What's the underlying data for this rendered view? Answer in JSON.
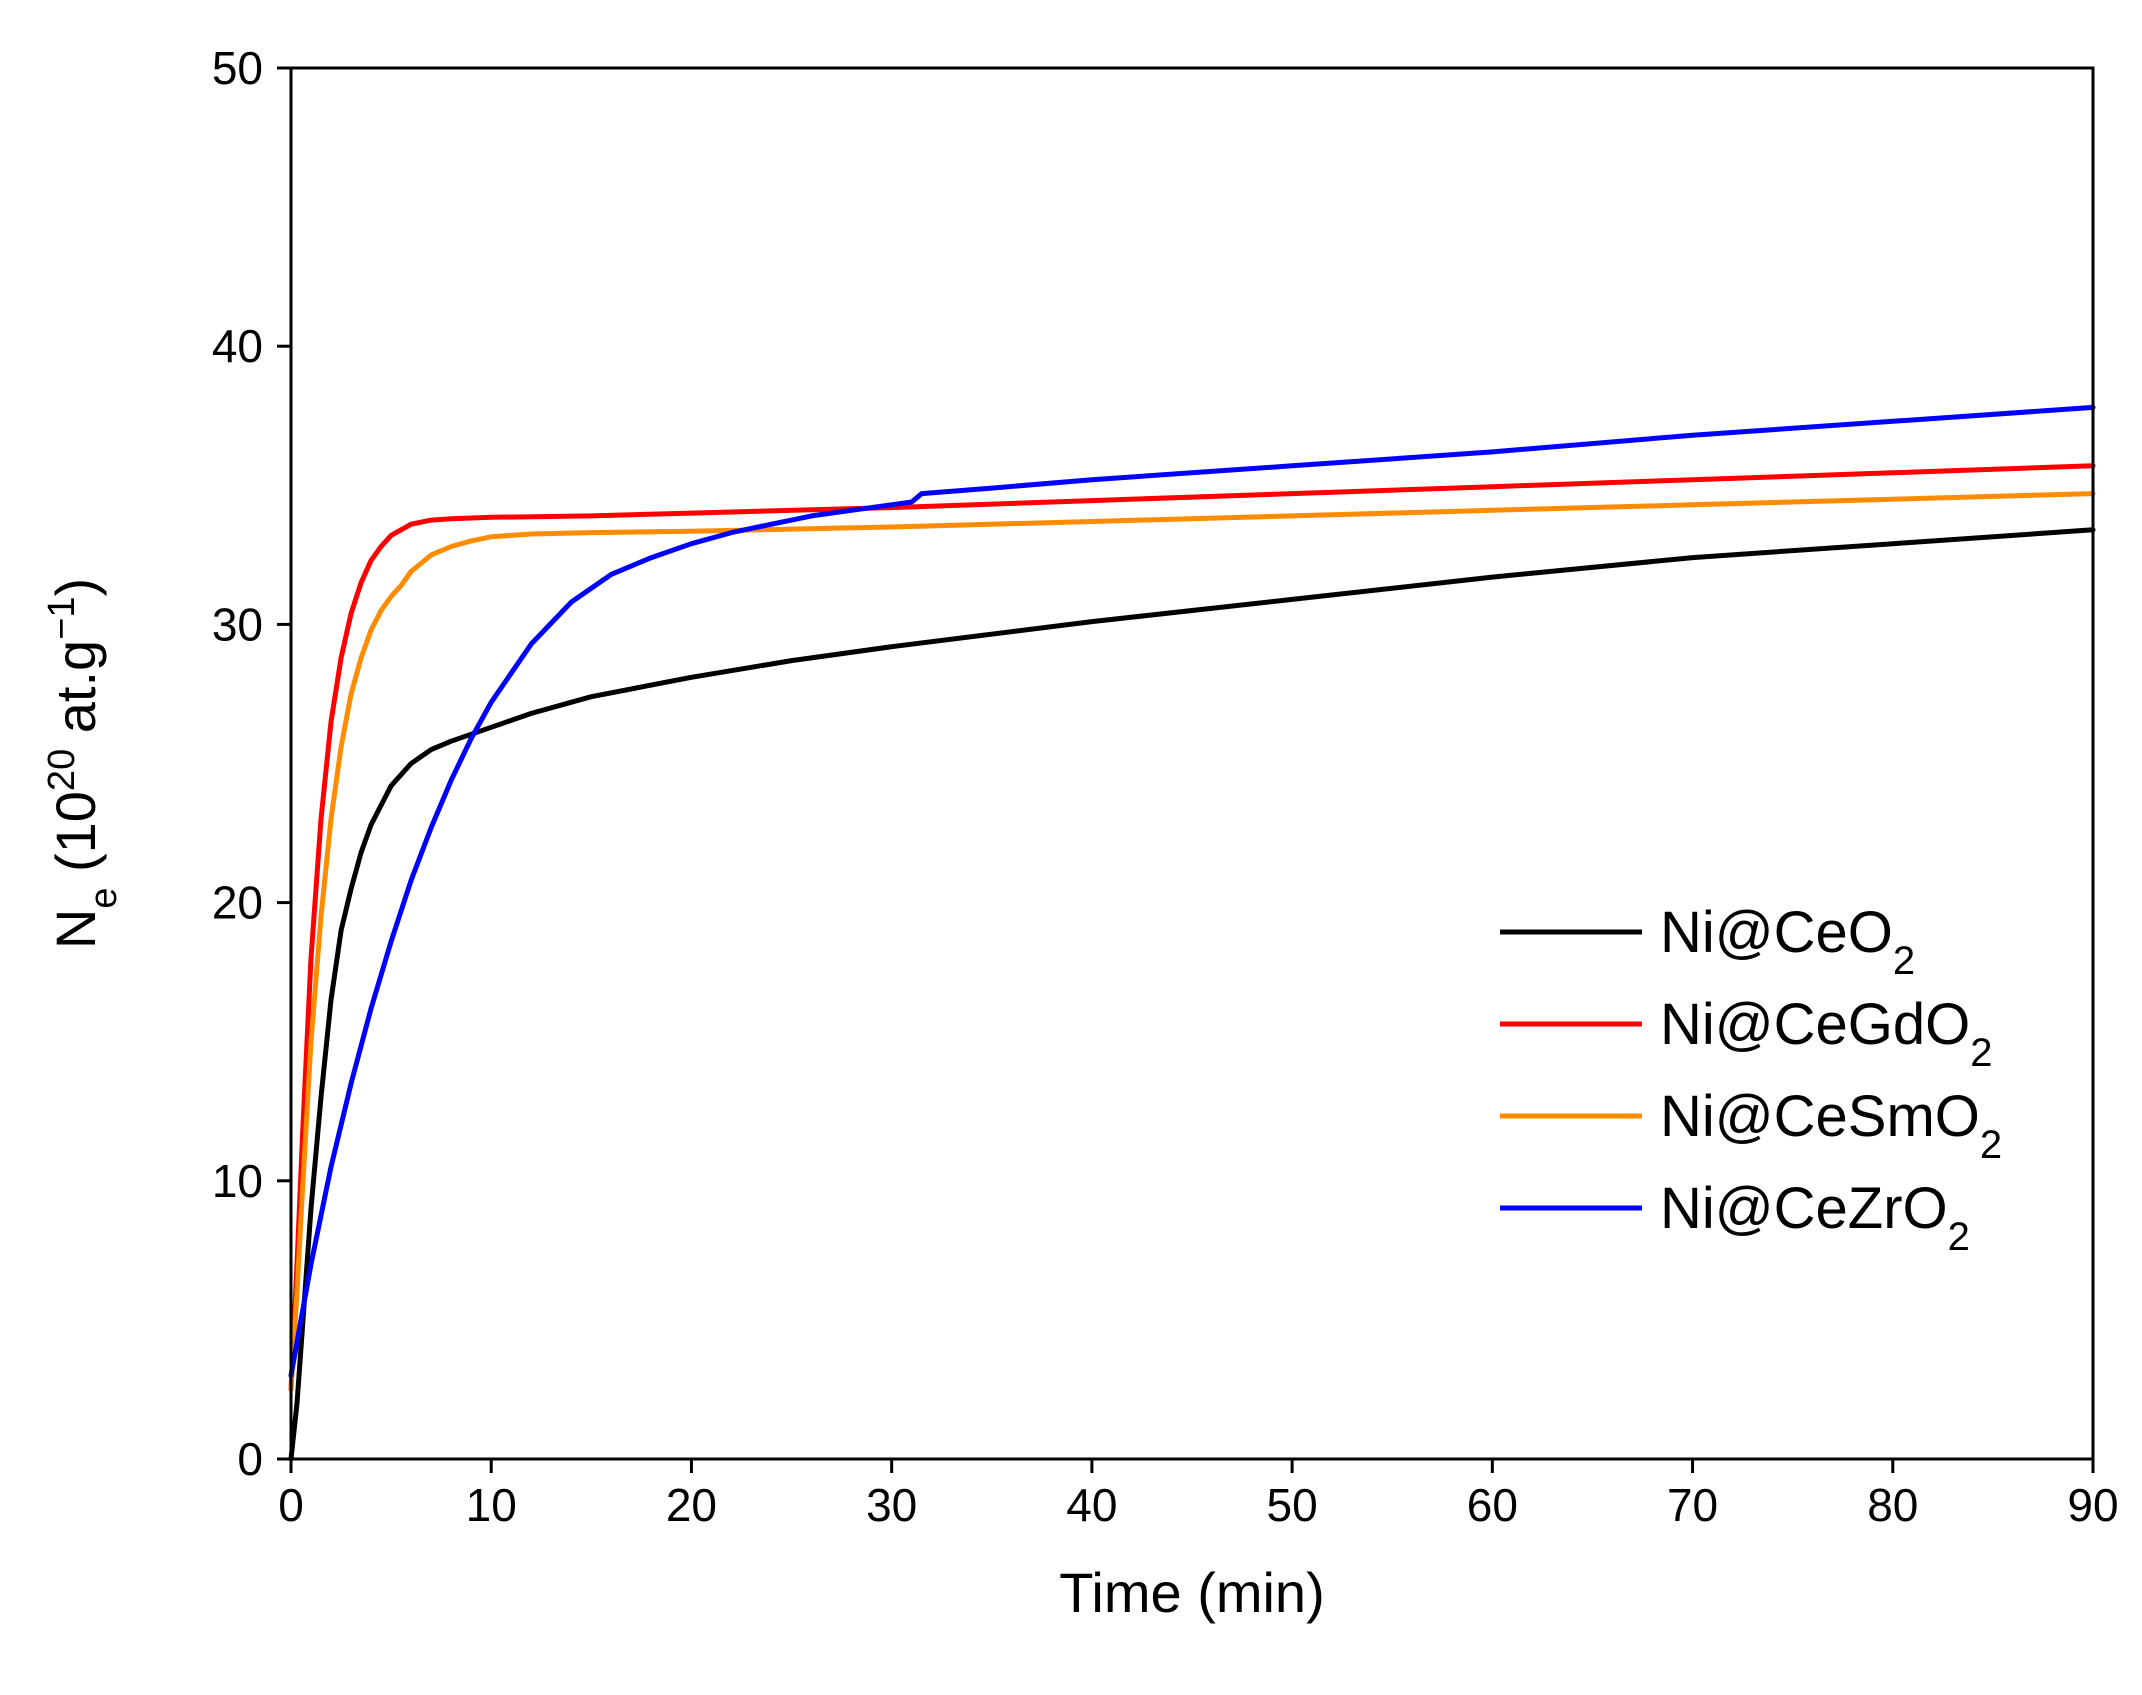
{
  "chart_data": {
    "type": "line",
    "title": "",
    "xlabel": "Time (min)",
    "ylabel": {
      "base": "N",
      "sub": "e",
      "open": " (10",
      "sup1": "20",
      "mid": " at.g",
      "sup2": "−1",
      "close": ")"
    },
    "xlim": [
      0,
      90
    ],
    "ylim": [
      0,
      50
    ],
    "xticks": [
      0,
      10,
      20,
      30,
      40,
      50,
      60,
      70,
      80,
      90
    ],
    "yticks": [
      0,
      10,
      20,
      30,
      40,
      50
    ],
    "grid": false,
    "legend_position": "lower-right",
    "series": [
      {
        "name": "Ni@CeO2",
        "label_base": "Ni@CeO",
        "label_sub": "2",
        "color": "#000000",
        "x": [
          0,
          0.3,
          0.6,
          1,
          1.5,
          2,
          2.5,
          3,
          3.5,
          4,
          5,
          6,
          7,
          8,
          10,
          12,
          15,
          20,
          25,
          30,
          40,
          50,
          60,
          70,
          80,
          90
        ],
        "y": [
          0,
          2,
          5,
          9,
          13,
          16.5,
          19,
          20.5,
          21.8,
          22.8,
          24.2,
          25,
          25.5,
          25.8,
          26.3,
          26.8,
          27.4,
          28.1,
          28.7,
          29.2,
          30.1,
          30.9,
          31.7,
          32.4,
          32.9,
          33.4
        ]
      },
      {
        "name": "Ni@CeGdO2",
        "label_base": "Ni@CeGdO",
        "label_sub": "2",
        "color": "#ff0000",
        "x": [
          0,
          0.3,
          0.6,
          1,
          1.5,
          2,
          2.5,
          3,
          3.5,
          4,
          4.5,
          5,
          6,
          7,
          8,
          10,
          15,
          20,
          30,
          40,
          50,
          60,
          70,
          80,
          90
        ],
        "y": [
          2.5,
          7,
          12,
          18,
          23,
          26.5,
          28.8,
          30.4,
          31.5,
          32.3,
          32.8,
          33.2,
          33.6,
          33.75,
          33.8,
          33.85,
          33.9,
          34.0,
          34.2,
          34.45,
          34.7,
          34.95,
          35.2,
          35.45,
          35.7
        ]
      },
      {
        "name": "Ni@CeSmO2",
        "label_base": "Ni@CeSmO",
        "label_sub": "2",
        "color": "#ff8c00",
        "x": [
          0,
          0.3,
          0.6,
          1,
          1.5,
          2,
          2.5,
          3,
          3.5,
          4,
          4.5,
          5,
          5.5,
          6,
          7,
          8,
          9,
          10,
          12,
          15,
          20,
          30,
          40,
          50,
          60,
          70,
          80,
          90
        ],
        "y": [
          2.5,
          6,
          10,
          15,
          19.5,
          23,
          25.6,
          27.5,
          28.8,
          29.8,
          30.5,
          31.0,
          31.4,
          31.9,
          32.5,
          32.8,
          33.0,
          33.15,
          33.25,
          33.3,
          33.35,
          33.5,
          33.7,
          33.9,
          34.1,
          34.3,
          34.5,
          34.7
        ]
      },
      {
        "name": "Ni@CeZrO2",
        "label_base": "Ni@CeZrO",
        "label_sub": "2",
        "color": "#0000ff",
        "x": [
          0,
          0.5,
          1,
          2,
          3,
          4,
          5,
          6,
          7,
          8,
          9,
          10,
          12,
          14,
          16,
          18,
          20,
          22,
          24,
          26,
          28,
          30,
          31,
          31.5,
          35,
          40,
          50,
          60,
          70,
          80,
          90
        ],
        "y": [
          3,
          5,
          7,
          10.5,
          13.5,
          16.2,
          18.6,
          20.8,
          22.7,
          24.4,
          25.9,
          27.2,
          29.3,
          30.8,
          31.8,
          32.4,
          32.9,
          33.3,
          33.6,
          33.9,
          34.1,
          34.3,
          34.4,
          34.7,
          34.9,
          35.2,
          35.7,
          36.2,
          36.8,
          37.3,
          37.8
        ]
      }
    ]
  }
}
